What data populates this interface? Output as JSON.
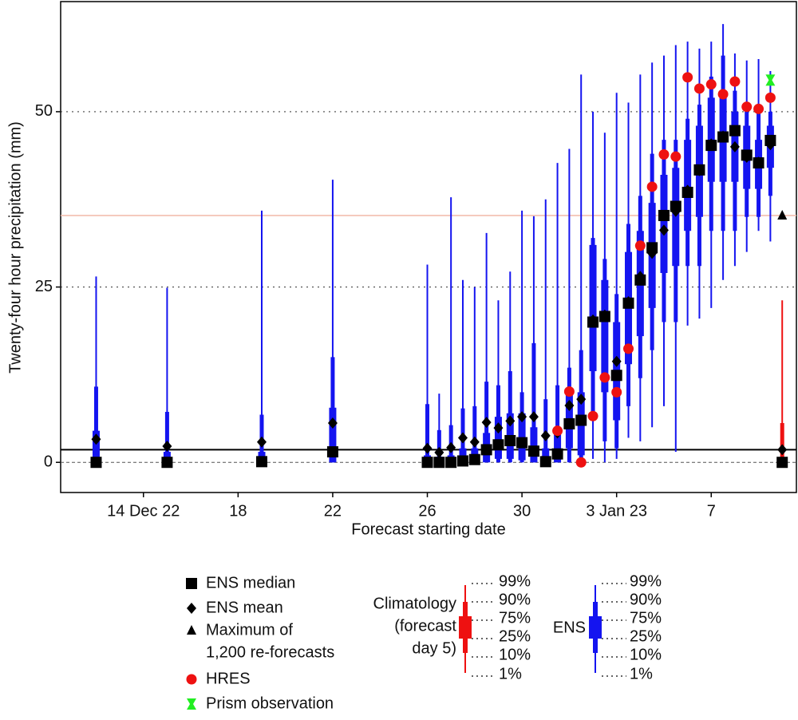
{
  "chart_data": {
    "type": "boxplot",
    "xlabel": "Forecast starting date",
    "ylabel": "Twenty-four hour precipitation (mm)",
    "xlim": [
      10.5,
      41.6
    ],
    "xticks": [
      {
        "value": 14,
        "label": "14 Dec 22"
      },
      18,
      22,
      26,
      30,
      {
        "value": 34,
        "label": "3 Jan 23"
      },
      {
        "value": 38,
        "label": "7"
      }
    ],
    "ylim": [
      -4.3,
      65.7
    ],
    "yticks": [
      0,
      25,
      50
    ],
    "grid": true,
    "x": [
      12,
      15,
      19,
      22,
      26,
      26.5,
      27,
      27.5,
      28,
      28.5,
      29,
      29.5,
      30,
      30.5,
      31,
      31.5,
      32,
      32.5,
      33,
      33.5,
      34,
      34.5,
      35,
      35.5,
      36,
      36.5,
      37,
      37.5,
      38,
      38.5,
      39,
      39.5,
      40,
      40.5
    ],
    "ens": {
      "name": "ENS",
      "color": "#1414f0",
      "p1": [
        0,
        0,
        0,
        0,
        0,
        0,
        0,
        0,
        0,
        0,
        0,
        0,
        0,
        0,
        0,
        0,
        0,
        0,
        0.5,
        0,
        0.5,
        3.5,
        3,
        5,
        8,
        1.5,
        19.5,
        20.5,
        22,
        26,
        28,
        30,
        33,
        31.5
      ],
      "p10": [
        0,
        0,
        0,
        0,
        0,
        0,
        0,
        0,
        0,
        0,
        0,
        0,
        0,
        0,
        0,
        0,
        0,
        0,
        6,
        3,
        2,
        8,
        12,
        16,
        20,
        20,
        28,
        28,
        33,
        33,
        33,
        35,
        35,
        38
      ],
      "p25": [
        0,
        0,
        0,
        0,
        0,
        0,
        0,
        0,
        0,
        0,
        0.5,
        0.5,
        0.3,
        0,
        0,
        0,
        2,
        1,
        13,
        10,
        6,
        14,
        18,
        22,
        27,
        28,
        33,
        35,
        40,
        40,
        40,
        39,
        39,
        42
      ],
      "p75": [
        4.5,
        1.5,
        1.5,
        7.8,
        1,
        0.8,
        1,
        2,
        2,
        4.2,
        6.5,
        7,
        7,
        5,
        2,
        5,
        10,
        10,
        31,
        26,
        20,
        30,
        33,
        37,
        41,
        42,
        46,
        48,
        52,
        53,
        50,
        48,
        46,
        48
      ],
      "p90": [
        10.8,
        7.2,
        6.8,
        15,
        8.3,
        4.6,
        5.3,
        7.7,
        8,
        11.5,
        11,
        13,
        10,
        17,
        9,
        11,
        13.5,
        16,
        32,
        29,
        24,
        34,
        38,
        44,
        46,
        46,
        49,
        51,
        55,
        58,
        53,
        51,
        50,
        50
      ],
      "p99": [
        26.5,
        24.9,
        35.9,
        40.3,
        28.2,
        9.8,
        37.8,
        26,
        25,
        32.7,
        23.1,
        27.2,
        35.9,
        35.1,
        37.5,
        42.7,
        44.7,
        55.3,
        50,
        47,
        52.7,
        51.3,
        55.3,
        57,
        58,
        59.5,
        60,
        59,
        60,
        62.5,
        58.3,
        57.3,
        57.5,
        55.8
      ]
    },
    "series": [
      {
        "name": "ENS median",
        "marker": "square",
        "color": "#000000",
        "values": [
          0,
          0,
          0.1,
          1.5,
          0,
          0,
          0,
          0.2,
          0.4,
          1.8,
          2.5,
          3.1,
          2.8,
          1.6,
          0.1,
          1.2,
          5.5,
          6,
          20,
          20.8,
          12.4,
          22.7,
          26,
          30.6,
          35.2,
          36.5,
          38.5,
          41.7,
          45.2,
          46.4,
          47.3,
          43.8,
          42.7,
          45.9
        ]
      },
      {
        "name": "ENS mean",
        "marker": "diamond",
        "color": "#000000",
        "values": [
          3.3,
          2.3,
          2.9,
          5.6,
          2.0,
          1.4,
          2.1,
          3.5,
          2.9,
          5.7,
          4.9,
          5.9,
          6.5,
          6.5,
          3.8,
          4.2,
          8.1,
          9,
          20.3,
          21,
          14.4,
          22.9,
          26.5,
          29.8,
          33.1,
          35.8,
          38.8,
          41.6,
          45.4,
          46.5,
          45,
          43.5,
          42.8,
          45.3
        ]
      },
      {
        "name": "HRES",
        "marker": "circle",
        "color": "#ee1111",
        "values": [
          null,
          null,
          null,
          null,
          null,
          null,
          null,
          null,
          null,
          null,
          null,
          null,
          null,
          null,
          null,
          4.5,
          10.1,
          0,
          6.6,
          12.1,
          10,
          16.2,
          30.9,
          39.3,
          43.9,
          43.6,
          54.9,
          53.3,
          53.9,
          52.5,
          54.3,
          50.7,
          50.4,
          52
        ]
      }
    ],
    "max_reforecasts": {
      "name_lines": [
        "Maximum of",
        "1,200 re-forecasts"
      ],
      "x": 41,
      "value": 35.2,
      "color": "#000000",
      "line_color": "#f2b8a8"
    },
    "prism": {
      "name": "Prism observation",
      "x": 40.5,
      "value": 54.5,
      "color": "#22ee22"
    },
    "climatology": {
      "label_lines": [
        "Climatology",
        "(forecast",
        "day 5)"
      ],
      "color": "#ee1111",
      "x": 41,
      "median": 0,
      "mean": 1.8,
      "p1": 0,
      "p10": 0,
      "p25": 0,
      "p75": 0.5,
      "p90": 5.6,
      "p99": 23.1
    },
    "key": {
      "percentiles": [
        "99%",
        "90%",
        "75%",
        "25%",
        "10%",
        "1%"
      ]
    }
  }
}
